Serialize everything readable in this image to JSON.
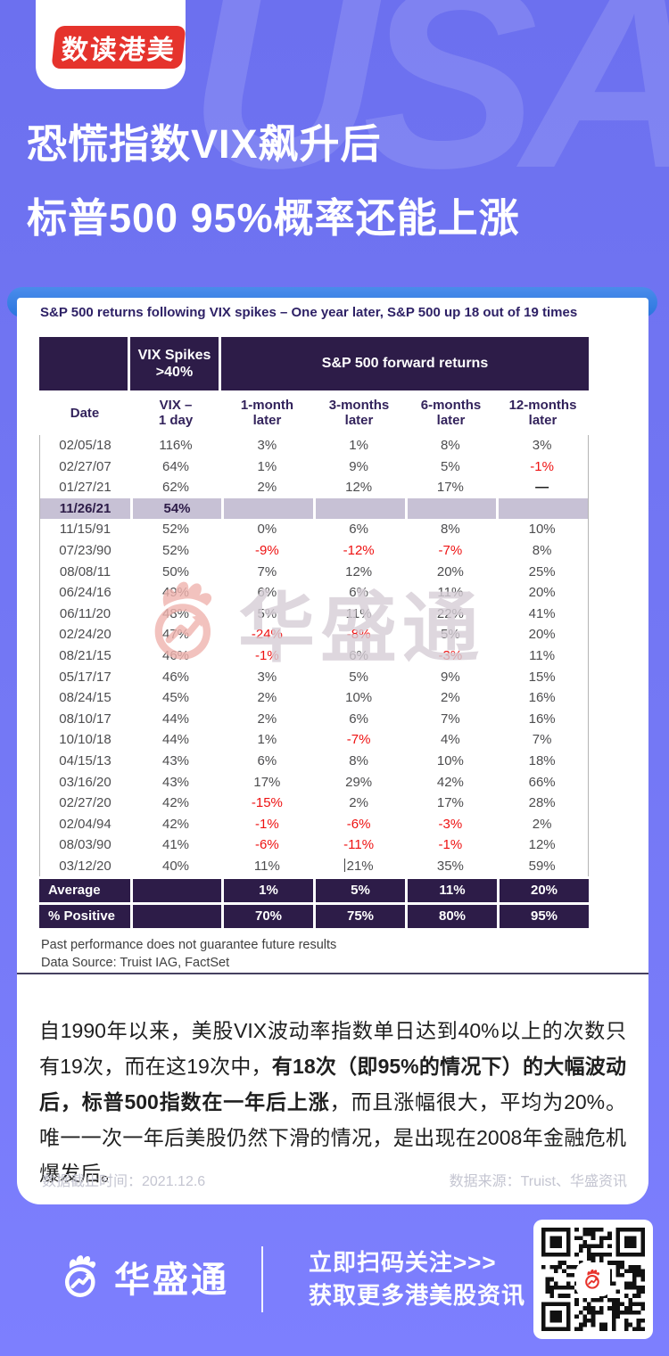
{
  "header": {
    "badge": "数读港美",
    "watermark": "USA",
    "title_line1": "恐慌指数VIX飙升后",
    "title_line2": "标普500 95%概率还能上涨"
  },
  "chart_data": {
    "type": "table",
    "title": "S&P 500 returns following VIX spikes – One year later, S&P 500 up 18 out of 19 times",
    "band_headers": [
      "",
      "VIX Spikes\n>40%",
      "S&P 500 forward returns"
    ],
    "columns": [
      "Date",
      "VIX –\n1 day",
      "1-month\nlater",
      "3-months\nlater",
      "6-months\nlater",
      "12-months\nlater"
    ],
    "rows": [
      [
        "02/05/18",
        "116%",
        "3%",
        "1%",
        "8%",
        "3%"
      ],
      [
        "02/27/07",
        "64%",
        "1%",
        "9%",
        "5%",
        "-1%"
      ],
      [
        "01/27/21",
        "62%",
        "2%",
        "12%",
        "17%",
        "—"
      ],
      [
        "11/26/21",
        "54%",
        "",
        "",
        "",
        ""
      ],
      [
        "11/15/91",
        "52%",
        "0%",
        "6%",
        "8%",
        "10%"
      ],
      [
        "07/23/90",
        "52%",
        "-9%",
        "-12%",
        "-7%",
        "8%"
      ],
      [
        "08/08/11",
        "50%",
        "7%",
        "12%",
        "20%",
        "25%"
      ],
      [
        "06/24/16",
        "49%",
        "6%",
        "6%",
        "11%",
        "20%"
      ],
      [
        "06/11/20",
        "48%",
        "5%",
        "11%",
        "22%",
        "41%"
      ],
      [
        "02/24/20",
        "47%",
        "-24%",
        "-8%",
        "5%",
        "20%"
      ],
      [
        "08/21/15",
        "46%",
        "-1%",
        "6%",
        "-3%",
        "11%"
      ],
      [
        "05/17/17",
        "46%",
        "3%",
        "5%",
        "9%",
        "15%"
      ],
      [
        "08/24/15",
        "45%",
        "2%",
        "10%",
        "2%",
        "16%"
      ],
      [
        "08/10/17",
        "44%",
        "2%",
        "6%",
        "7%",
        "16%"
      ],
      [
        "10/10/18",
        "44%",
        "1%",
        "-7%",
        "4%",
        "7%"
      ],
      [
        "04/15/13",
        "43%",
        "6%",
        "8%",
        "10%",
        "18%"
      ],
      [
        "03/16/20",
        "43%",
        "17%",
        "29%",
        "42%",
        "66%"
      ],
      [
        "02/27/20",
        "42%",
        "-15%",
        "2%",
        "17%",
        "28%"
      ],
      [
        "02/04/94",
        "42%",
        "-1%",
        "-6%",
        "-3%",
        "2%"
      ],
      [
        "08/03/90",
        "41%",
        "-6%",
        "-11%",
        "-1%",
        "12%"
      ],
      [
        "03/12/20",
        "40%",
        "11%",
        "21%",
        "35%",
        "59%"
      ]
    ],
    "highlight_row_index": 3,
    "caret_cell": {
      "row": 20,
      "col": 3
    },
    "summary_rows": [
      {
        "label": "Average",
        "values": [
          "",
          "1%",
          "5%",
          "11%",
          "20%"
        ]
      },
      {
        "label": "% Positive",
        "values": [
          "",
          "70%",
          "75%",
          "80%",
          "95%"
        ]
      }
    ],
    "footnotes": [
      "Past performance does not guarantee future results",
      "Data Source: Truist IAG, FactSet"
    ],
    "watermark": "华盛通",
    "legend_position": "none",
    "grid": false
  },
  "body": {
    "paragraph_pre": "自1990年以来，美股VIX波动率指数单日达到40%以上的次数只有19次，而在这19次中，",
    "paragraph_bold": "有18次（即95%的情况下）的大幅波动后，标普500指数在一年后上涨",
    "paragraph_post": "，而且涨幅很大，平均为20%。唯一一次一年后美股仍然下滑的情况，是出现在2008年金融危机爆发后。",
    "meta_left": "数据截止时间：2021.12.6",
    "meta_right": "数据来源：Truist、华盛资讯"
  },
  "footer": {
    "brand": "华盛通",
    "cta_line1": "立即扫码关注>>>",
    "cta_line2": "获取更多港美股资讯"
  },
  "colors": {
    "background_purple": "#6e72f0",
    "card_bar_blue": "#2a75de",
    "table_header_dark": "#2d1c48",
    "highlight_row": "#c7c1d5",
    "negative_red": "#ee1111",
    "badge_red": "#e5332c"
  }
}
